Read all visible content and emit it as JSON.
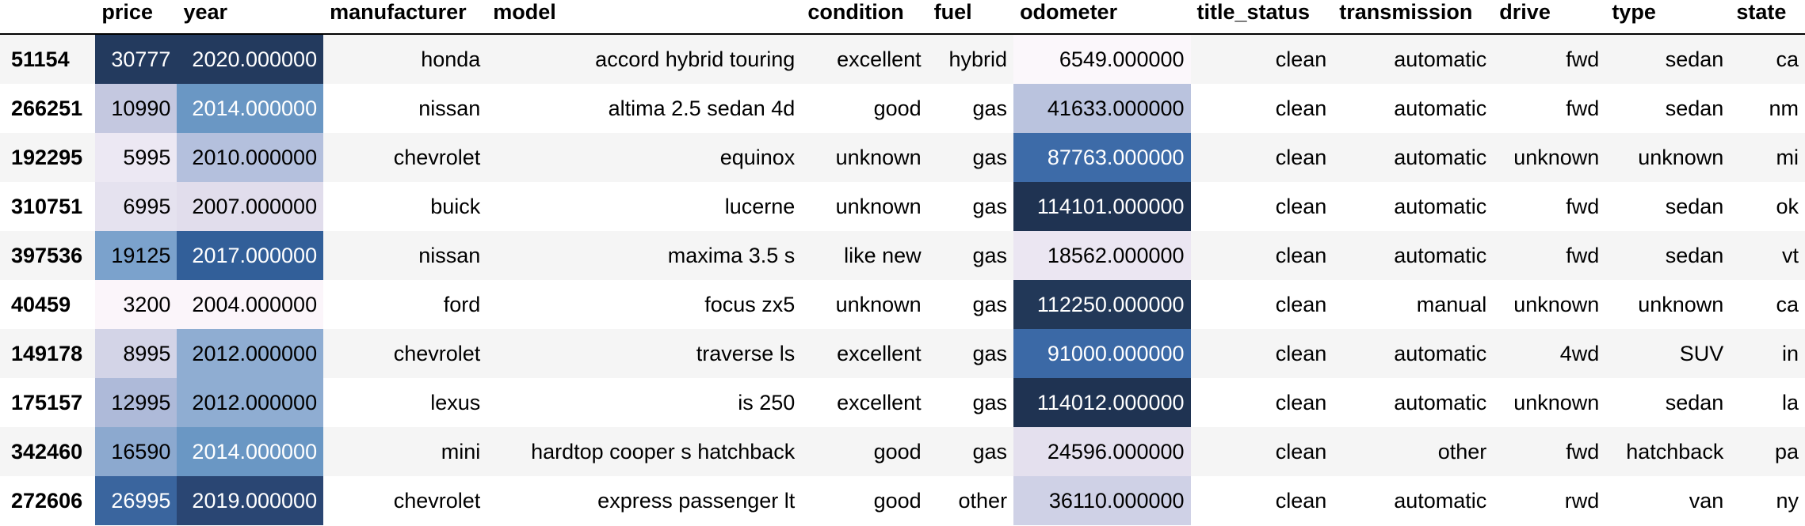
{
  "columns": [
    "price",
    "year",
    "manufacturer",
    "model",
    "condition",
    "fuel",
    "odometer",
    "title_status",
    "transmission",
    "drive",
    "type",
    "state"
  ],
  "rows": [
    {
      "index": "51154",
      "cells": [
        "30777",
        "2020.000000",
        "honda",
        "accord hybrid touring",
        "excellent",
        "hybrid",
        "6549.000000",
        "clean",
        "automatic",
        "fwd",
        "sedan",
        "ca"
      ],
      "price_bg": "#233a5e",
      "year_bg": "#233a5e",
      "odo_bg": "#fbf7fb"
    },
    {
      "index": "266251",
      "cells": [
        "10990",
        "2014.000000",
        "nissan",
        "altima 2.5 sedan 4d",
        "good",
        "gas",
        "41633.000000",
        "clean",
        "automatic",
        "fwd",
        "sedan",
        "nm"
      ],
      "price_bg": "#c4c8e0",
      "year_bg": "#6a97c4",
      "odo_bg": "#bac3de"
    },
    {
      "index": "192295",
      "cells": [
        "5995",
        "2010.000000",
        "chevrolet",
        "equinox",
        "unknown",
        "gas",
        "87763.000000",
        "clean",
        "automatic",
        "unknown",
        "unknown",
        "mi"
      ],
      "price_bg": "#ece8f3",
      "year_bg": "#b4c0dd",
      "odo_bg": "#3d6ba8"
    },
    {
      "index": "310751",
      "cells": [
        "6995",
        "2007.000000",
        "buick",
        "lucerne",
        "unknown",
        "gas",
        "114101.000000",
        "clean",
        "automatic",
        "fwd",
        "sedan",
        "ok"
      ],
      "price_bg": "#e5e2ef",
      "year_bg": "#e1ddec",
      "odo_bg": "#1f3352"
    },
    {
      "index": "397536",
      "cells": [
        "19125",
        "2017.000000",
        "nissan",
        "maxima 3.5 s",
        "like new",
        "gas",
        "18562.000000",
        "clean",
        "automatic",
        "fwd",
        "sedan",
        "vt"
      ],
      "price_bg": "#7ba2cc",
      "year_bg": "#325f99",
      "odo_bg": "#ebe6f2"
    },
    {
      "index": "40459",
      "cells": [
        "3200",
        "2004.000000",
        "ford",
        "focus zx5",
        "unknown",
        "gas",
        "112250.000000",
        "clean",
        "manual",
        "unknown",
        "unknown",
        "ca"
      ],
      "price_bg": "#fbf5fa",
      "year_bg": "#fbf5fa",
      "odo_bg": "#223858"
    },
    {
      "index": "149178",
      "cells": [
        "8995",
        "2012.000000",
        "chevrolet",
        "traverse ls",
        "excellent",
        "gas",
        "91000.000000",
        "clean",
        "automatic",
        "4wd",
        "SUV",
        "in"
      ],
      "price_bg": "#d3d4e7",
      "year_bg": "#8fadd2",
      "odo_bg": "#3b69a6"
    },
    {
      "index": "175157",
      "cells": [
        "12995",
        "2012.000000",
        "lexus",
        "is 250",
        "excellent",
        "gas",
        "114012.000000",
        "clean",
        "automatic",
        "unknown",
        "sedan",
        "la"
      ],
      "price_bg": "#aebad9",
      "year_bg": "#8fadd2",
      "odo_bg": "#1f3352"
    },
    {
      "index": "342460",
      "cells": [
        "16590",
        "2014.000000",
        "mini",
        "hardtop cooper s hatchback",
        "good",
        "gas",
        "24596.000000",
        "clean",
        "other",
        "fwd",
        "hatchback",
        "pa"
      ],
      "price_bg": "#8ca9cf",
      "year_bg": "#6a97c4",
      "odo_bg": "#e4e0ee"
    },
    {
      "index": "272606",
      "cells": [
        "26995",
        "2019.000000",
        "chevrolet",
        "express passenger lt",
        "good",
        "other",
        "36110.000000",
        "clean",
        "automatic",
        "rwd",
        "van",
        "ny"
      ],
      "price_bg": "#3a659e",
      "year_bg": "#2a4673",
      "odo_bg": "#cfd1e6"
    }
  ]
}
